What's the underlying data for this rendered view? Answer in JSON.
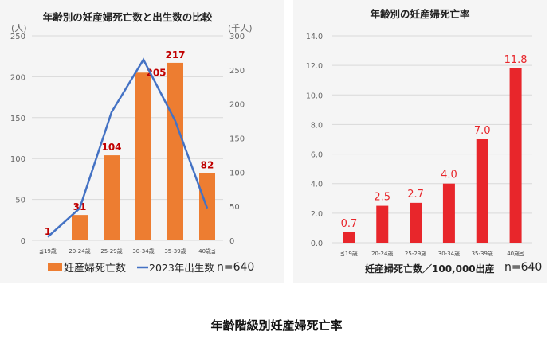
{
  "caption": "年齢階級別妊産婦死亡率",
  "chart_data": [
    {
      "type": "bar+line",
      "title": "年齢別の妊産婦死亡数と出生数の比較",
      "categories": [
        "≦19歳",
        "20-24歳",
        "25-29歳",
        "30-34歳",
        "35-39歳",
        "40歳≦"
      ],
      "left_axis": {
        "unit": "(人)",
        "ylim": [
          0,
          250
        ],
        "ticks": [
          "0",
          "50",
          "100",
          "150",
          "200",
          "250"
        ]
      },
      "right_axis": {
        "unit": "(千人)",
        "ylim": [
          0,
          300
        ],
        "ticks": [
          "0",
          "50",
          "100",
          "150",
          "200",
          "250",
          "300"
        ]
      },
      "series": [
        {
          "name": "妊産婦死亡数",
          "type": "bar",
          "axis": "left",
          "color": "#ed7d31",
          "values": [
            1,
            31,
            104,
            205,
            217,
            82
          ],
          "labels": [
            "1",
            "31",
            "104",
            "205",
            "217",
            "82"
          ]
        },
        {
          "name": "2023年出生数",
          "type": "line",
          "axis": "right",
          "color": "#4472c4",
          "values": [
            5,
            47,
            188,
            265,
            175,
            47
          ]
        }
      ],
      "note": "n=640",
      "legend": "bottom",
      "grid": true
    },
    {
      "type": "bar",
      "title": "年齢別の妊産婦死亡率",
      "categories": [
        "≦19歳",
        "20-24歳",
        "25-29歳",
        "30-34歳",
        "35-39歳",
        "40歳≦"
      ],
      "values": [
        0.7,
        2.5,
        2.7,
        4.0,
        7.0,
        11.8
      ],
      "labels": [
        "0.7",
        "2.5",
        "2.7",
        "4.0",
        "7.0",
        "11.8"
      ],
      "color": "#e8262b",
      "ylim": [
        0,
        14
      ],
      "ticks": [
        "0.0",
        "2.0",
        "4.0",
        "6.0",
        "8.0",
        "10.0",
        "12.0",
        "14.0"
      ],
      "xlabel": "妊産婦死亡数／100,000出産",
      "note": "n=640",
      "grid": true
    }
  ]
}
